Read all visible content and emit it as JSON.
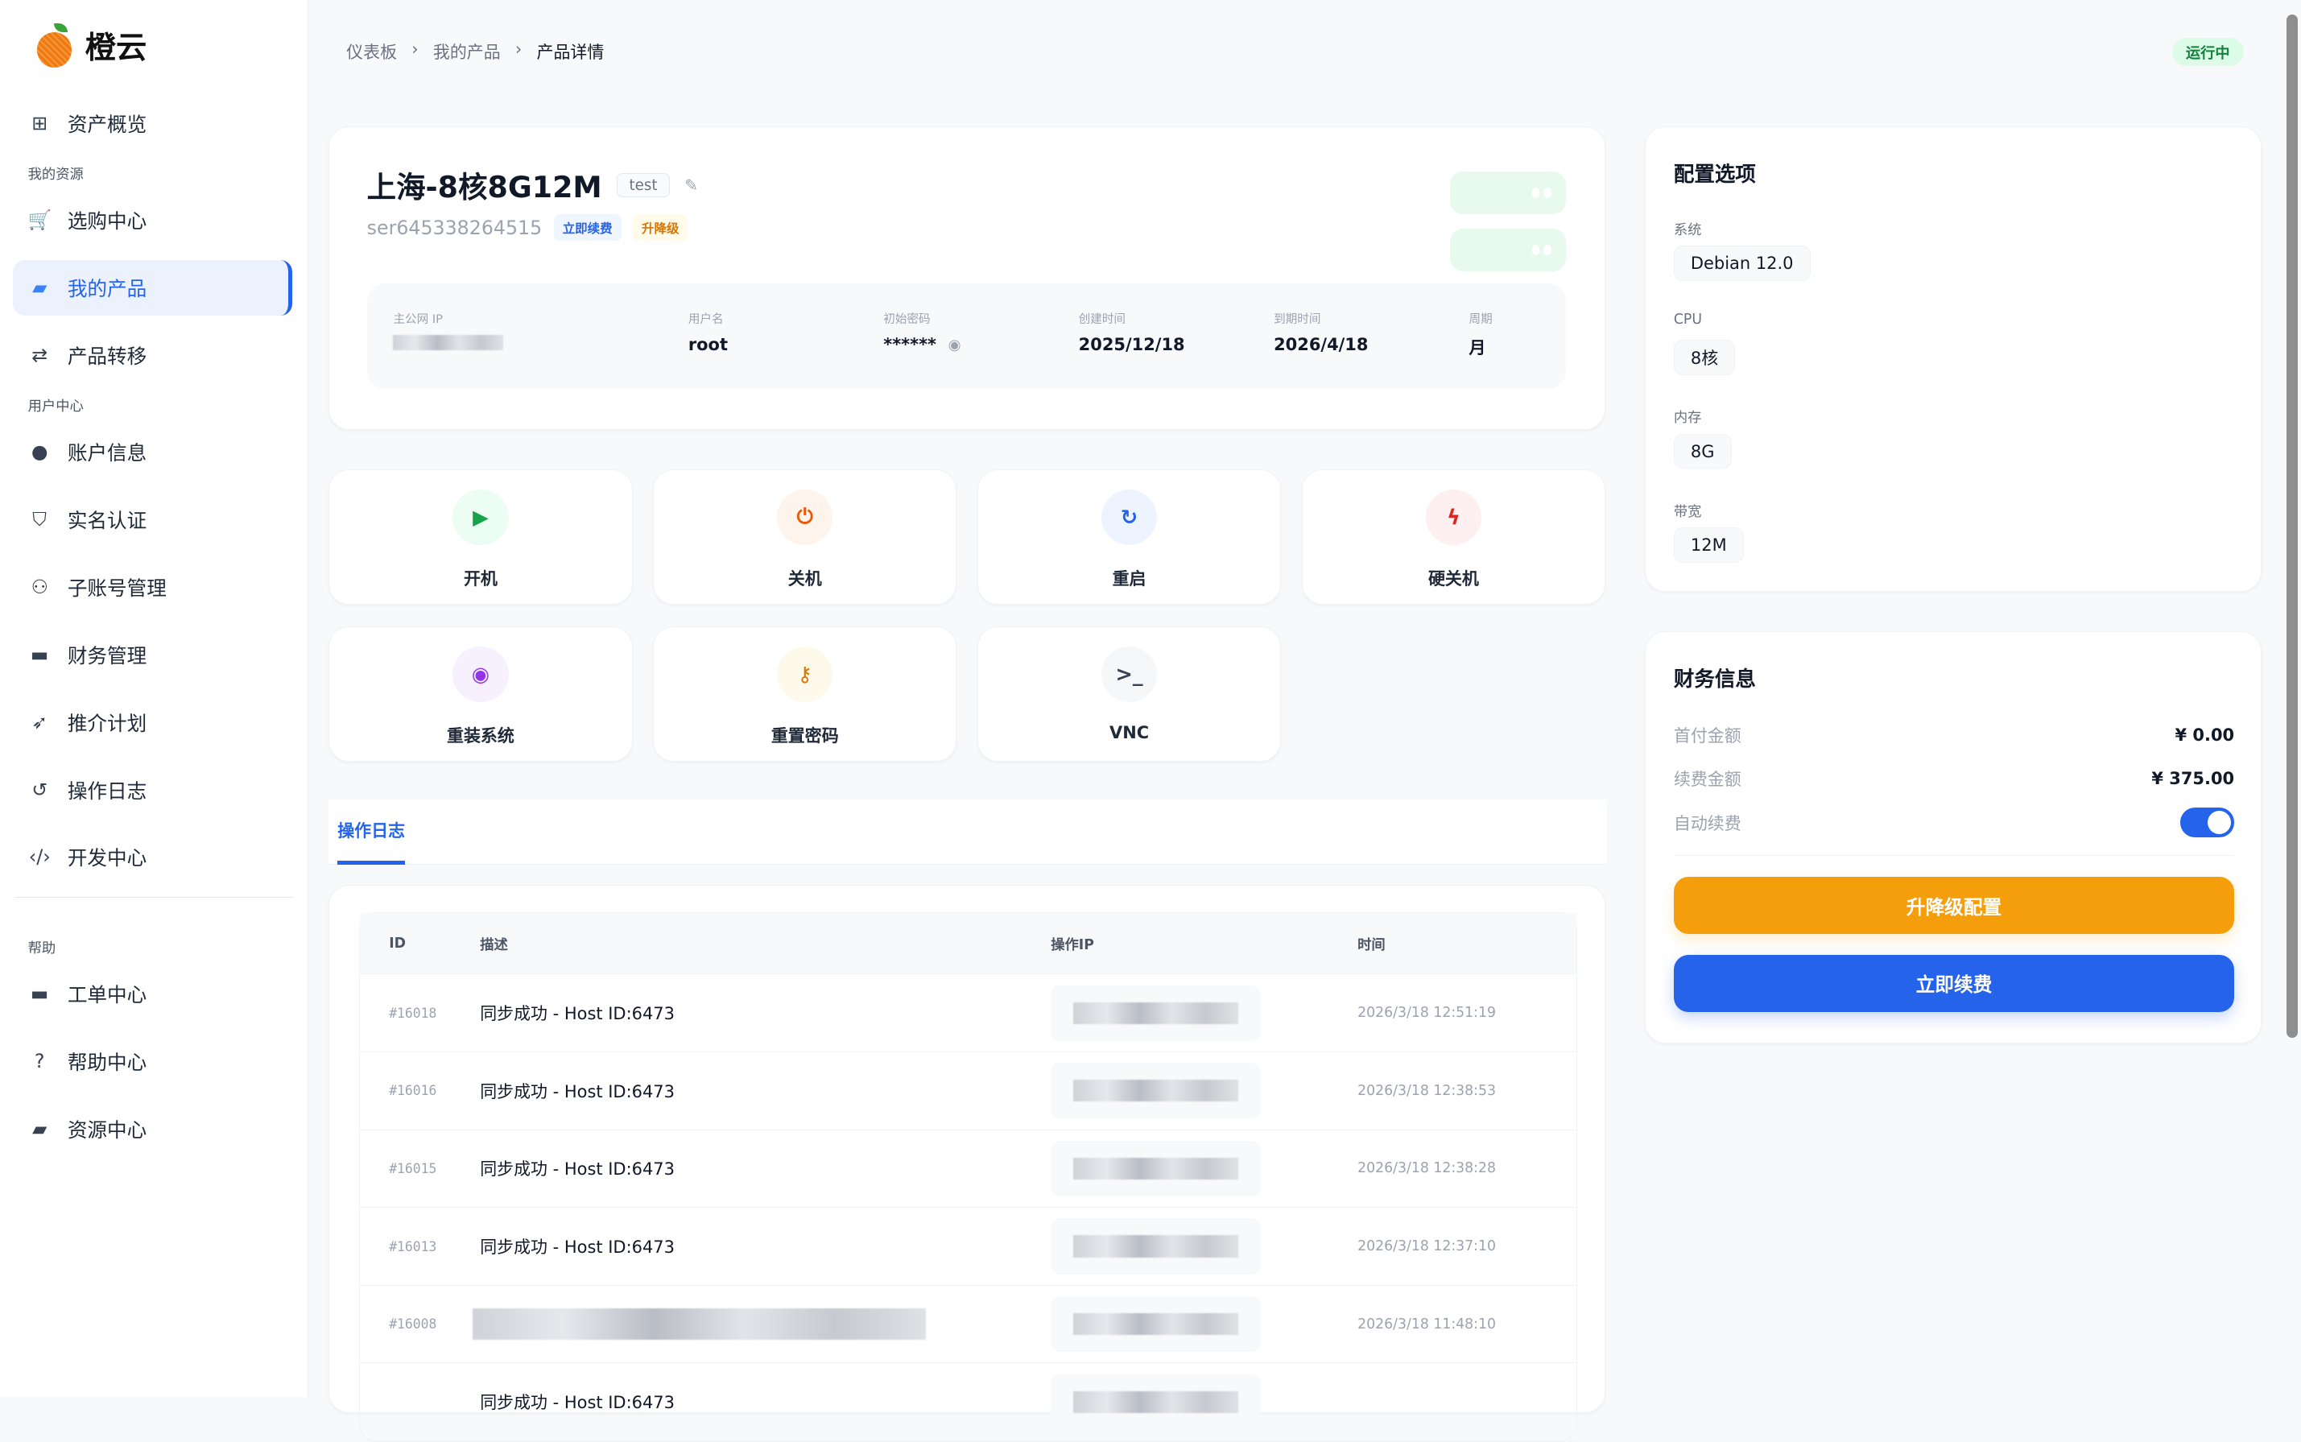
{
  "brand": {
    "name": "橙云"
  },
  "sidebar": {
    "items": [
      {
        "label": "资产概览",
        "icon": "grid-icon"
      },
      {
        "section": "我的资源"
      },
      {
        "label": "选购中心",
        "icon": "cart-icon"
      },
      {
        "label": "我的产品",
        "icon": "box-icon",
        "active": true
      },
      {
        "label": "产品转移",
        "icon": "transfer-icon"
      },
      {
        "section": "用户中心"
      },
      {
        "label": "账户信息",
        "icon": "user-circle-icon"
      },
      {
        "label": "实名认证",
        "icon": "shield-icon"
      },
      {
        "label": "子账号管理",
        "icon": "users-icon"
      },
      {
        "label": "财务管理",
        "icon": "wallet-icon"
      },
      {
        "label": "推介计划",
        "icon": "rocket-icon"
      },
      {
        "label": "操作日志",
        "icon": "history-icon"
      },
      {
        "label": "开发中心",
        "icon": "code-icon"
      },
      {
        "section": "帮助"
      },
      {
        "label": "工单中心",
        "icon": "ticket-icon"
      },
      {
        "label": "帮助中心",
        "icon": "question-icon"
      },
      {
        "label": "资源中心",
        "icon": "folder-icon"
      }
    ]
  },
  "breadcrumb": [
    "仪表板",
    "我的产品",
    "产品详情"
  ],
  "status": "运行中",
  "product": {
    "name": "上海-8核8G12M",
    "tag": "test",
    "serial": "ser645338264515",
    "renew_tag": "立即续费",
    "upgrade_tag": "升降级",
    "info": [
      {
        "label": "主公网 IP",
        "value": ""
      },
      {
        "label": "用户名",
        "value": "root"
      },
      {
        "label": "初始密码",
        "value": "******"
      },
      {
        "label": "创建时间",
        "value": "2025/12/18"
      },
      {
        "label": "到期时间",
        "value": "2026/4/18"
      },
      {
        "label": "周期",
        "value": "月"
      }
    ]
  },
  "actions": [
    {
      "label": "开机",
      "icon": "play-icon",
      "color": "#16a34a",
      "bg": "#ecfdf3"
    },
    {
      "label": "关机",
      "icon": "power-icon",
      "color": "#ea580c",
      "bg": "#fff4ec"
    },
    {
      "label": "重启",
      "icon": "refresh-icon",
      "color": "#2563eb",
      "bg": "#eef4ff"
    },
    {
      "label": "硬关机",
      "icon": "bolt-icon",
      "color": "#dc2626",
      "bg": "#fef0f0"
    },
    {
      "label": "重装系统",
      "icon": "disc-icon",
      "color": "#9333ea",
      "bg": "#f7f0fe"
    },
    {
      "label": "重置密码",
      "icon": "key-icon",
      "color": "#d97706",
      "bg": "#fefaeb"
    },
    {
      "label": "VNC",
      "icon": "terminal-icon",
      "color": "#374151",
      "bg": "#f6f7f9"
    }
  ],
  "log": {
    "tab": "操作日志",
    "headers": [
      "ID",
      "描述",
      "操作IP",
      "时间"
    ],
    "rows": [
      {
        "id": "#16018",
        "desc": "同步成功 - Host ID:6473",
        "time": "2026/3/18 12:51:19"
      },
      {
        "id": "#16016",
        "desc": "同步成功 - Host ID:6473",
        "time": "2026/3/18 12:38:53"
      },
      {
        "id": "#16015",
        "desc": "同步成功 - Host ID:6473",
        "time": "2026/3/18 12:38:28"
      },
      {
        "id": "#16013",
        "desc": "同步成功 - Host ID:6473",
        "time": "2026/3/18 12:37:10"
      },
      {
        "id": "#16008",
        "desc": "",
        "time": "2026/3/18 11:48:10"
      },
      {
        "id": "",
        "desc": "同步成功 - Host ID:6473",
        "time": ""
      }
    ]
  },
  "config": {
    "title": "配置选项",
    "items": [
      {
        "label": "系统",
        "value": "Debian 12.0"
      },
      {
        "label": "CPU",
        "value": "8核"
      },
      {
        "label": "内存",
        "value": "8G"
      },
      {
        "label": "带宽",
        "value": "12M"
      }
    ]
  },
  "finance": {
    "title": "财务信息",
    "first_label": "首付金额",
    "first_value": "¥ 0.00",
    "renew_label": "续费金额",
    "renew_value": "¥ 375.00",
    "auto_label": "自动续费",
    "auto_on": true,
    "upgrade_btn": "升降级配置",
    "renew_btn": "立即续费",
    "upgrade_color": "#f59e0b",
    "renew_color": "#2563eb"
  }
}
